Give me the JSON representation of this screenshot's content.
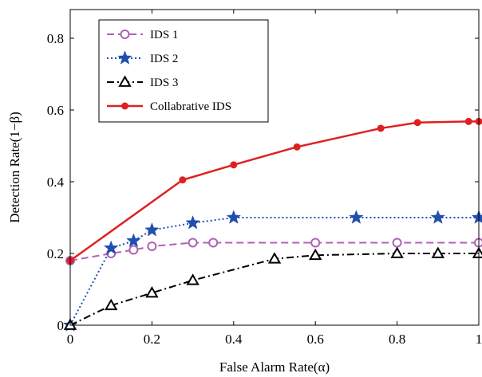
{
  "chart_data": {
    "type": "line",
    "xlabel": "False Alarm Rate(α)",
    "ylabel": "Detection Rate(1−β)",
    "xlim": [
      0,
      1
    ],
    "ylim": [
      0,
      0.88
    ],
    "xticks": [
      0,
      0.2,
      0.4,
      0.6,
      0.8,
      1
    ],
    "xtick_labels": [
      "0",
      "0.2",
      "0.4",
      "0.6",
      "0.8",
      "1"
    ],
    "yticks": [
      0,
      0.2,
      0.4,
      0.6,
      0.8
    ],
    "ytick_labels": [
      "0",
      "0.2",
      "0.4",
      "0.6",
      "0.8"
    ],
    "grid": false,
    "legend_position": "top-left",
    "series": [
      {
        "name": "IDS 1",
        "color": "#b060b8",
        "line_style": "dashed",
        "marker": "circle-open",
        "points": [
          {
            "x": 0,
            "y": 0.18
          },
          {
            "x": 0.1,
            "y": 0.2
          },
          {
            "x": 0.155,
            "y": 0.21
          },
          {
            "x": 0.2,
            "y": 0.22
          },
          {
            "x": 0.3,
            "y": 0.23
          },
          {
            "x": 0.35,
            "y": 0.23
          },
          {
            "x": 0.6,
            "y": 0.23
          },
          {
            "x": 0.8,
            "y": 0.23
          },
          {
            "x": 1,
            "y": 0.23
          }
        ]
      },
      {
        "name": "IDS 2",
        "color": "#1f4fb0",
        "line_style": "dotted",
        "marker": "star-filled",
        "points": [
          {
            "x": 0,
            "y": 0
          },
          {
            "x": 0.1,
            "y": 0.215
          },
          {
            "x": 0.155,
            "y": 0.235
          },
          {
            "x": 0.2,
            "y": 0.265
          },
          {
            "x": 0.3,
            "y": 0.285
          },
          {
            "x": 0.4,
            "y": 0.3
          },
          {
            "x": 0.7,
            "y": 0.3
          },
          {
            "x": 0.9,
            "y": 0.3
          },
          {
            "x": 1,
            "y": 0.3
          }
        ]
      },
      {
        "name": "IDS 3",
        "color": "#000000",
        "line_style": "dashdot",
        "marker": "triangle-open",
        "points": [
          {
            "x": 0,
            "y": 0
          },
          {
            "x": 0.1,
            "y": 0.055
          },
          {
            "x": 0.2,
            "y": 0.09
          },
          {
            "x": 0.3,
            "y": 0.125
          },
          {
            "x": 0.5,
            "y": 0.185
          },
          {
            "x": 0.6,
            "y": 0.195
          },
          {
            "x": 0.8,
            "y": 0.2
          },
          {
            "x": 0.9,
            "y": 0.2
          },
          {
            "x": 1,
            "y": 0.2
          }
        ]
      },
      {
        "name": "Collabrative IDS",
        "color": "#e02020",
        "line_style": "solid",
        "marker": "circle-filled",
        "points": [
          {
            "x": 0,
            "y": 0.18
          },
          {
            "x": 0.275,
            "y": 0.405
          },
          {
            "x": 0.4,
            "y": 0.447
          },
          {
            "x": 0.555,
            "y": 0.497
          },
          {
            "x": 0.76,
            "y": 0.549
          },
          {
            "x": 0.85,
            "y": 0.565
          },
          {
            "x": 0.975,
            "y": 0.568
          },
          {
            "x": 1,
            "y": 0.568
          }
        ]
      }
    ]
  }
}
